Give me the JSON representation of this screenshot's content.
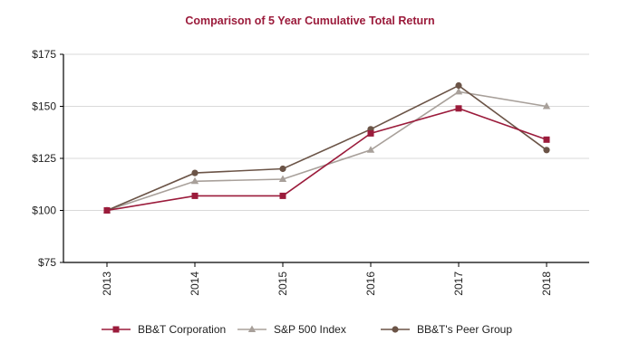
{
  "chart_data": {
    "type": "line",
    "title": "Comparison of 5 Year Cumulative Total Return",
    "xlabel": "",
    "ylabel": "",
    "categories": [
      "2013",
      "2014",
      "2015",
      "2016",
      "2017",
      "2018"
    ],
    "ylim": [
      75,
      175
    ],
    "yticks": [
      75,
      100,
      125,
      150,
      175
    ],
    "ytick_labels": [
      "$75",
      "$100",
      "$125",
      "$150",
      "$175"
    ],
    "grid": true,
    "legend_position": "bottom",
    "series": [
      {
        "name": "BB&T Corporation",
        "marker": "square",
        "color": "#9b1b3b",
        "values": [
          100,
          107,
          107,
          137,
          149,
          134
        ]
      },
      {
        "name": "S&P 500 Index",
        "marker": "triangle",
        "color": "#a8a09a",
        "values": [
          100,
          114,
          115,
          129,
          157,
          150
        ]
      },
      {
        "name": "BB&T's Peer Group",
        "marker": "circle",
        "color": "#6b5447",
        "values": [
          100,
          118,
          120,
          139,
          160,
          129
        ]
      }
    ]
  },
  "colors": {
    "title": "#9b1b3b",
    "axis": "#000000",
    "grid": "#d9d9d9"
  }
}
